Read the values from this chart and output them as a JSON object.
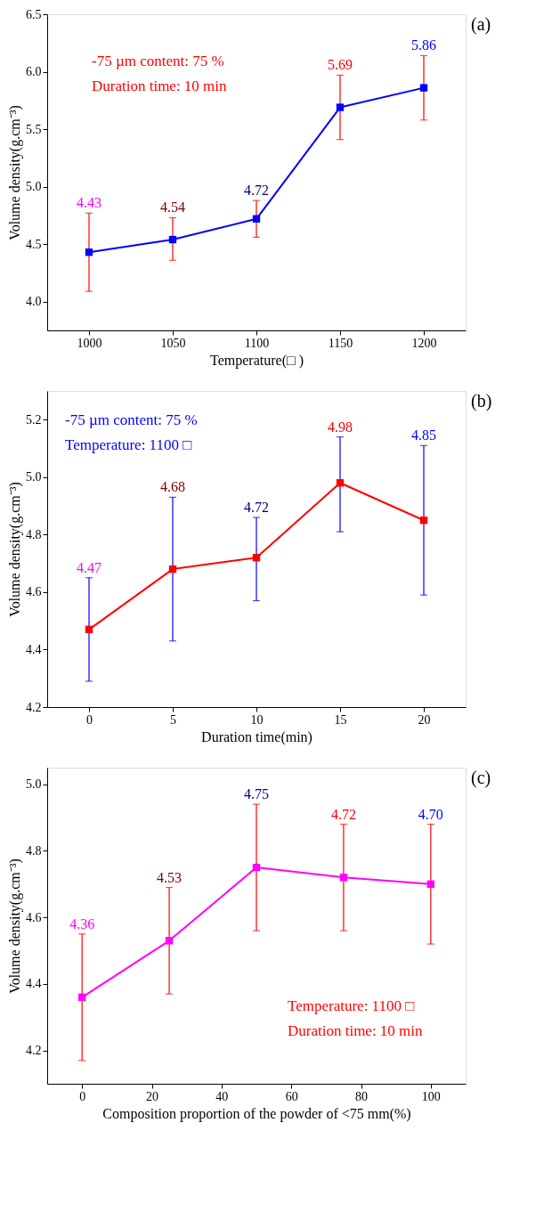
{
  "chart_data": [
    {
      "type": "line",
      "title": "(a)",
      "xlabel": "Temperature(□ )",
      "ylabel": "Volume density(g.cm⁻³)",
      "x": [
        1000,
        1050,
        1100,
        1150,
        1200
      ],
      "xlim": [
        975,
        1225
      ],
      "xticks": [
        1000,
        1050,
        1100,
        1150,
        1200
      ],
      "ylim": [
        3.75,
        6.5
      ],
      "yticks": [
        {
          "value": 4,
          "label": "4.0"
        },
        4.5,
        {
          "value": 5,
          "label": "5.0"
        },
        5.5,
        {
          "value": 6,
          "label": "6.0"
        },
        6.5
      ],
      "marker": "square",
      "grid": false,
      "series": [
        {
          "color": "#0000ff",
          "values": [
            4.43,
            4.54,
            4.72,
            5.69,
            5.86
          ],
          "errors": [
            [
              4.09,
              4.77
            ],
            [
              4.36,
              4.73
            ],
            [
              4.56,
              4.88
            ],
            [
              5.41,
              5.97
            ],
            [
              5.58,
              6.14
            ]
          ]
        }
      ],
      "annotations": [
        "-75 µm content: 75 %",
        "Duration time: 10 min",
        {
          "text": "4.43",
          "x": 1000,
          "y": 4.77
        },
        {
          "text": "4.54",
          "x": 1050,
          "y": 4.73
        },
        {
          "text": "4.72",
          "x": 1100,
          "y": 4.88
        },
        {
          "text": "5.69",
          "x": 1150,
          "y": 5.97
        },
        {
          "text": "5.86",
          "x": 1200,
          "y": 6.14
        }
      ]
    },
    {
      "type": "line",
      "title": "(b)",
      "xlabel": "Duration time(min)",
      "ylabel": "Volume density(g.cm⁻³)",
      "x": [
        0,
        5,
        10,
        15,
        20
      ],
      "xlim": [
        -2.5,
        22.5
      ],
      "xticks": [
        0,
        5,
        10,
        15,
        20
      ],
      "ylim": [
        4.2,
        5.3
      ],
      "yticks": [
        4.2,
        4.4,
        4.6,
        4.8,
        {
          "value": 5,
          "label": "5.0"
        },
        5.2
      ],
      "marker": "square",
      "grid": false,
      "series": [
        {
          "color": "#ff0000",
          "values": [
            4.47,
            4.68,
            4.72,
            4.98,
            4.85
          ],
          "errors": [
            [
              4.29,
              4.65
            ],
            [
              4.43,
              4.93
            ],
            [
              4.57,
              4.86
            ],
            [
              4.81,
              5.14
            ],
            [
              4.59,
              5.11
            ]
          ]
        }
      ],
      "annotations": [
        "-75 µm content: 75 %",
        "Temperature: 1100 □",
        {
          "text": "4.47",
          "x": 0,
          "y": 4.65
        },
        {
          "text": "4.68",
          "x": 5,
          "y": 4.93
        },
        {
          "text": "4.72",
          "x": 10,
          "y": 4.86
        },
        {
          "text": "4.98",
          "x": 15,
          "y": 5.14
        },
        {
          "text": "4.85",
          "x": 20,
          "y": 5.11
        }
      ]
    },
    {
      "type": "line",
      "title": "(c)",
      "xlabel": "Composition proportion of the powder of <75 mm(%)",
      "ylabel": "Volume density(g.cm⁻³)",
      "x": [
        0,
        25,
        50,
        75,
        100
      ],
      "xlim": [
        -10,
        110
      ],
      "xticks": [
        0,
        20,
        40,
        60,
        80,
        100
      ],
      "ylim": [
        4.1,
        5.05
      ],
      "yticks": [
        4.2,
        4.4,
        4.6,
        4.8,
        {
          "value": 5,
          "label": "5.0"
        }
      ],
      "marker": "square",
      "grid": false,
      "series": [
        {
          "color": "#ff00ff",
          "values": [
            4.36,
            4.53,
            4.75,
            4.72,
            4.7
          ],
          "errors": [
            [
              4.17,
              4.55
            ],
            [
              4.37,
              4.69
            ],
            [
              4.56,
              4.94
            ],
            [
              4.56,
              4.88
            ],
            [
              4.52,
              4.88
            ]
          ]
        }
      ],
      "annotations": [
        "Temperature: 1100 □",
        "Duration time: 10 min",
        {
          "text": "4.36",
          "x": 0,
          "y": 4.55
        },
        {
          "text": "4.53",
          "x": 25,
          "y": 4.69
        },
        {
          "text": "4.75",
          "x": 50,
          "y": 4.94
        },
        {
          "text": "4.72",
          "x": 75,
          "y": 4.88
        },
        {
          "text": "4.70",
          "x": 100,
          "y": 4.88
        }
      ]
    }
  ]
}
